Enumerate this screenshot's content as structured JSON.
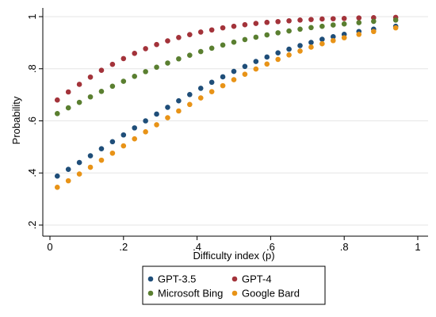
{
  "chart_data": {
    "type": "scatter",
    "xlabel": "Difficulty index (p)",
    "ylabel": "Probability",
    "xlim": [
      0,
      1
    ],
    "ylim": [
      0.2,
      1
    ],
    "xticks": [
      0,
      0.2,
      0.4,
      0.6,
      0.8,
      1
    ],
    "xtick_labels": [
      "0",
      ".2",
      ".4",
      ".6",
      ".8",
      "1"
    ],
    "yticks": [
      0.2,
      0.4,
      0.6,
      0.8,
      1
    ],
    "ytick_labels": [
      ".2",
      ".4",
      ".6",
      ".8",
      "1"
    ],
    "grid": "horizontal",
    "legend_position": "bottom",
    "x": [
      0.02,
      0.05,
      0.08,
      0.11,
      0.14,
      0.17,
      0.2,
      0.23,
      0.26,
      0.29,
      0.32,
      0.35,
      0.38,
      0.41,
      0.44,
      0.47,
      0.5,
      0.53,
      0.56,
      0.59,
      0.62,
      0.65,
      0.68,
      0.71,
      0.74,
      0.77,
      0.8,
      0.84,
      0.88,
      0.94
    ],
    "series": [
      {
        "name": "GPT-3.5",
        "color": "#1f4e79",
        "values": [
          0.388,
          0.414,
          0.44,
          0.466,
          0.493,
          0.52,
          0.546,
          0.573,
          0.6,
          0.626,
          0.652,
          0.677,
          0.701,
          0.725,
          0.748,
          0.769,
          0.79,
          0.809,
          0.828,
          0.845,
          0.861,
          0.875,
          0.889,
          0.901,
          0.913,
          0.923,
          0.932,
          0.943,
          0.952,
          0.963
        ]
      },
      {
        "name": "GPT-4",
        "color": "#a3333a",
        "values": [
          0.68,
          0.711,
          0.74,
          0.768,
          0.794,
          0.817,
          0.839,
          0.859,
          0.877,
          0.893,
          0.907,
          0.92,
          0.931,
          0.941,
          0.949,
          0.957,
          0.963,
          0.969,
          0.974,
          0.978,
          0.981,
          0.984,
          0.987,
          0.989,
          0.991,
          0.992,
          0.993,
          0.995,
          0.996,
          0.997
        ]
      },
      {
        "name": "Microsoft Bing",
        "color": "#5a7f30",
        "values": [
          0.628,
          0.65,
          0.671,
          0.692,
          0.713,
          0.733,
          0.752,
          0.771,
          0.789,
          0.806,
          0.822,
          0.838,
          0.852,
          0.866,
          0.879,
          0.891,
          0.902,
          0.912,
          0.921,
          0.93,
          0.938,
          0.945,
          0.952,
          0.958,
          0.963,
          0.968,
          0.972,
          0.977,
          0.982,
          0.987
        ]
      },
      {
        "name": "Google Bard",
        "color": "#e89317",
        "values": [
          0.345,
          0.37,
          0.396,
          0.422,
          0.449,
          0.476,
          0.504,
          0.531,
          0.558,
          0.585,
          0.612,
          0.638,
          0.663,
          0.688,
          0.712,
          0.735,
          0.758,
          0.779,
          0.799,
          0.818,
          0.836,
          0.853,
          0.868,
          0.883,
          0.896,
          0.908,
          0.919,
          0.932,
          0.943,
          0.957
        ]
      }
    ]
  }
}
